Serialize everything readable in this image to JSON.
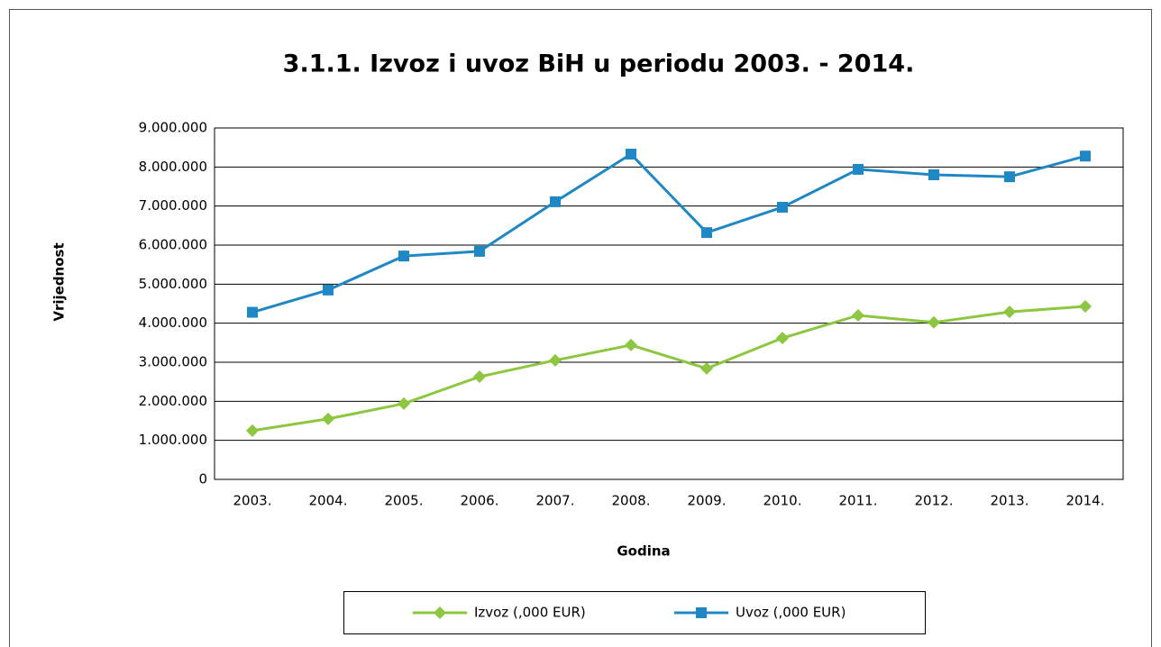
{
  "chart_data": {
    "type": "line",
    "title": "3.1.1. Izvoz i uvoz BiH u periodu 2003. - 2014.",
    "x_label": "Godina",
    "y_label": "Vrijednost",
    "categories": [
      "2003.",
      "2004.",
      "2005.",
      "2006.",
      "2007.",
      "2008.",
      "2009.",
      "2010.",
      "2011.",
      "2012.",
      "2013.",
      "2014."
    ],
    "series": [
      {
        "name": "Izvoz (,000 EUR)",
        "color": "#8dc63f",
        "marker": "diamond",
        "values": [
          1250000,
          1550000,
          1940000,
          2630000,
          3050000,
          3440000,
          2840000,
          3620000,
          4200000,
          4020000,
          4290000,
          4430000
        ]
      },
      {
        "name": "Uvoz (,000 EUR)",
        "color": "#1f88c4",
        "marker": "square",
        "values": [
          4280000,
          4850000,
          5720000,
          5840000,
          7110000,
          8330000,
          6320000,
          6970000,
          7940000,
          7800000,
          7750000,
          8280000
        ]
      }
    ],
    "ylim": [
      0,
      9000000
    ],
    "yticks": [
      0,
      {
        "value": 1000000,
        "label": "1.000.000"
      },
      {
        "value": 2000000,
        "label": "2.000.000"
      },
      {
        "value": 3000000,
        "label": "3.000.000"
      },
      {
        "value": 4000000,
        "label": "4.000.000"
      },
      {
        "value": 5000000,
        "label": "5.000.000"
      },
      {
        "value": 6000000,
        "label": "6.000.000"
      },
      {
        "value": 7000000,
        "label": "7.000.000"
      },
      {
        "value": 8000000,
        "label": "8.000.000"
      },
      {
        "value": 9000000,
        "label": "9.000.000"
      }
    ],
    "grid": true,
    "legend": "bottom"
  }
}
